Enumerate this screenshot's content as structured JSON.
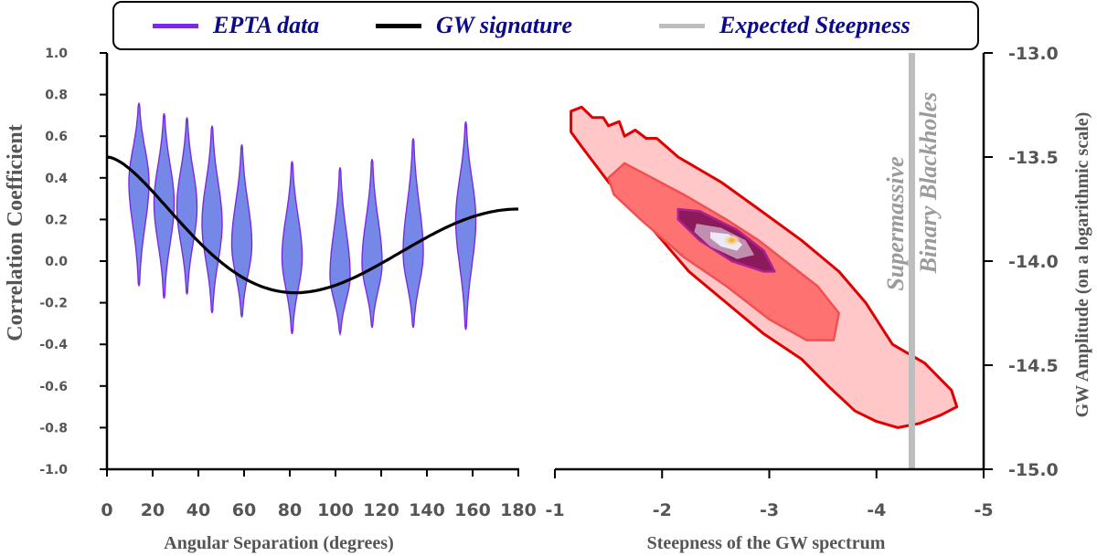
{
  "legend": {
    "items": [
      {
        "label": "EPTA data",
        "color": "#7a2be0"
      },
      {
        "label": "GW signature",
        "color": "#000000"
      },
      {
        "label": "Expected Steepness",
        "color": "#bdbdbd"
      }
    ]
  },
  "annotation": [
    "Supermassive",
    "Binary Blackholes"
  ],
  "chart_data": [
    {
      "type": "violin",
      "xlabel": "Angular Separation (degrees)",
      "ylabel": "Correlation Coefficient",
      "xlim": [
        0,
        180
      ],
      "ylim": [
        -1.0,
        1.0
      ],
      "xticks": [
        "0",
        "20",
        "40",
        "60",
        "80",
        "100",
        "120",
        "140",
        "160",
        "180"
      ],
      "yticks": [
        "1.0",
        "0.8",
        "0.6",
        "0.4",
        "0.2",
        "0.0",
        "-0.2",
        "-0.4",
        "-0.6",
        "-0.8",
        "-1.0"
      ],
      "violins": [
        {
          "x": 14,
          "median": 0.38,
          "min": -0.12,
          "max": 0.76
        },
        {
          "x": 25,
          "median": 0.28,
          "min": -0.18,
          "max": 0.71
        },
        {
          "x": 35,
          "median": 0.26,
          "min": -0.16,
          "max": 0.69
        },
        {
          "x": 46,
          "median": 0.18,
          "min": -0.25,
          "max": 0.65
        },
        {
          "x": 59,
          "median": 0.08,
          "min": -0.27,
          "max": 0.56
        },
        {
          "x": 81,
          "median": 0.02,
          "min": -0.35,
          "max": 0.48
        },
        {
          "x": 102,
          "median": -0.07,
          "min": -0.35,
          "max": 0.45
        },
        {
          "x": 116,
          "median": -0.01,
          "min": -0.32,
          "max": 0.49
        },
        {
          "x": 134,
          "median": 0.04,
          "min": -0.32,
          "max": 0.59
        },
        {
          "x": 157,
          "median": 0.2,
          "min": -0.33,
          "max": 0.67
        }
      ],
      "curve_name": "GW signature"
    },
    {
      "type": "contour",
      "xlabel": "Steepness of the GW spectrum",
      "ylabel": "GW Amplitude (on a logarithmic scale)",
      "xlim": [
        -1,
        -5
      ],
      "ylim": [
        -15.0,
        -13.0
      ],
      "xticks": [
        "-1",
        "-2",
        "-3",
        "-4",
        "-5"
      ],
      "yticks": [
        "-13.0",
        "-13.5",
        "-14.0",
        "-14.5",
        "-15.0"
      ],
      "peak": {
        "x": -2.65,
        "y": -13.9
      },
      "expected_steepness": -4.33,
      "levels": [
        {
          "color": "#ffc7c7",
          "stroke": "#e00000",
          "points": [
            [
              -1.15,
              -13.28
            ],
            [
              -1.25,
              -13.26
            ],
            [
              -1.35,
              -13.31
            ],
            [
              -1.45,
              -13.31
            ],
            [
              -1.5,
              -13.35
            ],
            [
              -1.6,
              -13.33
            ],
            [
              -1.65,
              -13.4
            ],
            [
              -1.75,
              -13.37
            ],
            [
              -1.85,
              -13.41
            ],
            [
              -1.95,
              -13.41
            ],
            [
              -2.15,
              -13.5
            ],
            [
              -2.55,
              -13.62
            ],
            [
              -2.9,
              -13.75
            ],
            [
              -3.3,
              -13.9
            ],
            [
              -3.65,
              -14.05
            ],
            [
              -3.9,
              -14.2
            ],
            [
              -4.05,
              -14.32
            ],
            [
              -4.15,
              -14.4
            ],
            [
              -4.45,
              -14.49
            ],
            [
              -4.7,
              -14.62
            ],
            [
              -4.75,
              -14.7
            ],
            [
              -4.6,
              -14.74
            ],
            [
              -4.4,
              -14.78
            ],
            [
              -4.2,
              -14.8
            ],
            [
              -4.0,
              -14.77
            ],
            [
              -3.8,
              -14.72
            ],
            [
              -3.55,
              -14.6
            ],
            [
              -3.3,
              -14.47
            ],
            [
              -2.95,
              -14.35
            ],
            [
              -2.6,
              -14.2
            ],
            [
              -2.25,
              -14.05
            ],
            [
              -2.0,
              -13.9
            ],
            [
              -1.75,
              -13.75
            ],
            [
              -1.5,
              -13.62
            ],
            [
              -1.25,
              -13.45
            ],
            [
              -1.15,
              -13.38
            ]
          ]
        },
        {
          "color": "#ff7272",
          "stroke": "#f25050",
          "points": [
            [
              -1.5,
              -13.6
            ],
            [
              -1.65,
              -13.53
            ],
            [
              -2.2,
              -13.68
            ],
            [
              -2.6,
              -13.8
            ],
            [
              -2.9,
              -13.9
            ],
            [
              -3.2,
              -14.02
            ],
            [
              -3.45,
              -14.12
            ],
            [
              -3.65,
              -14.25
            ],
            [
              -3.6,
              -14.38
            ],
            [
              -3.35,
              -14.38
            ],
            [
              -3.0,
              -14.28
            ],
            [
              -2.6,
              -14.12
            ],
            [
              -2.2,
              -13.98
            ],
            [
              -1.8,
              -13.8
            ],
            [
              -1.55,
              -13.68
            ]
          ]
        },
        {
          "color": "#8a1a5a",
          "stroke": "#b02090",
          "points": [
            [
              -2.15,
              -13.75
            ],
            [
              -2.35,
              -13.76
            ],
            [
              -2.7,
              -13.85
            ],
            [
              -2.95,
              -13.95
            ],
            [
              -3.05,
              -14.05
            ],
            [
              -2.95,
              -14.05
            ],
            [
              -2.65,
              -14.0
            ],
            [
              -2.35,
              -13.9
            ],
            [
              -2.15,
              -13.8
            ]
          ]
        },
        {
          "color": "#c28eb0",
          "stroke": "none",
          "points": [
            [
              -2.32,
              -13.82
            ],
            [
              -2.55,
              -13.84
            ],
            [
              -2.78,
              -13.9
            ],
            [
              -2.86,
              -13.97
            ],
            [
              -2.7,
              -13.99
            ],
            [
              -2.45,
              -13.93
            ],
            [
              -2.3,
              -13.86
            ]
          ]
        },
        {
          "color": "#eaeaf8",
          "stroke": "none",
          "points": [
            [
              -2.45,
              -13.86
            ],
            [
              -2.62,
              -13.87
            ],
            [
              -2.75,
              -13.92
            ],
            [
              -2.7,
              -13.95
            ],
            [
              -2.55,
              -13.93
            ],
            [
              -2.45,
              -13.89
            ]
          ]
        }
      ]
    }
  ]
}
